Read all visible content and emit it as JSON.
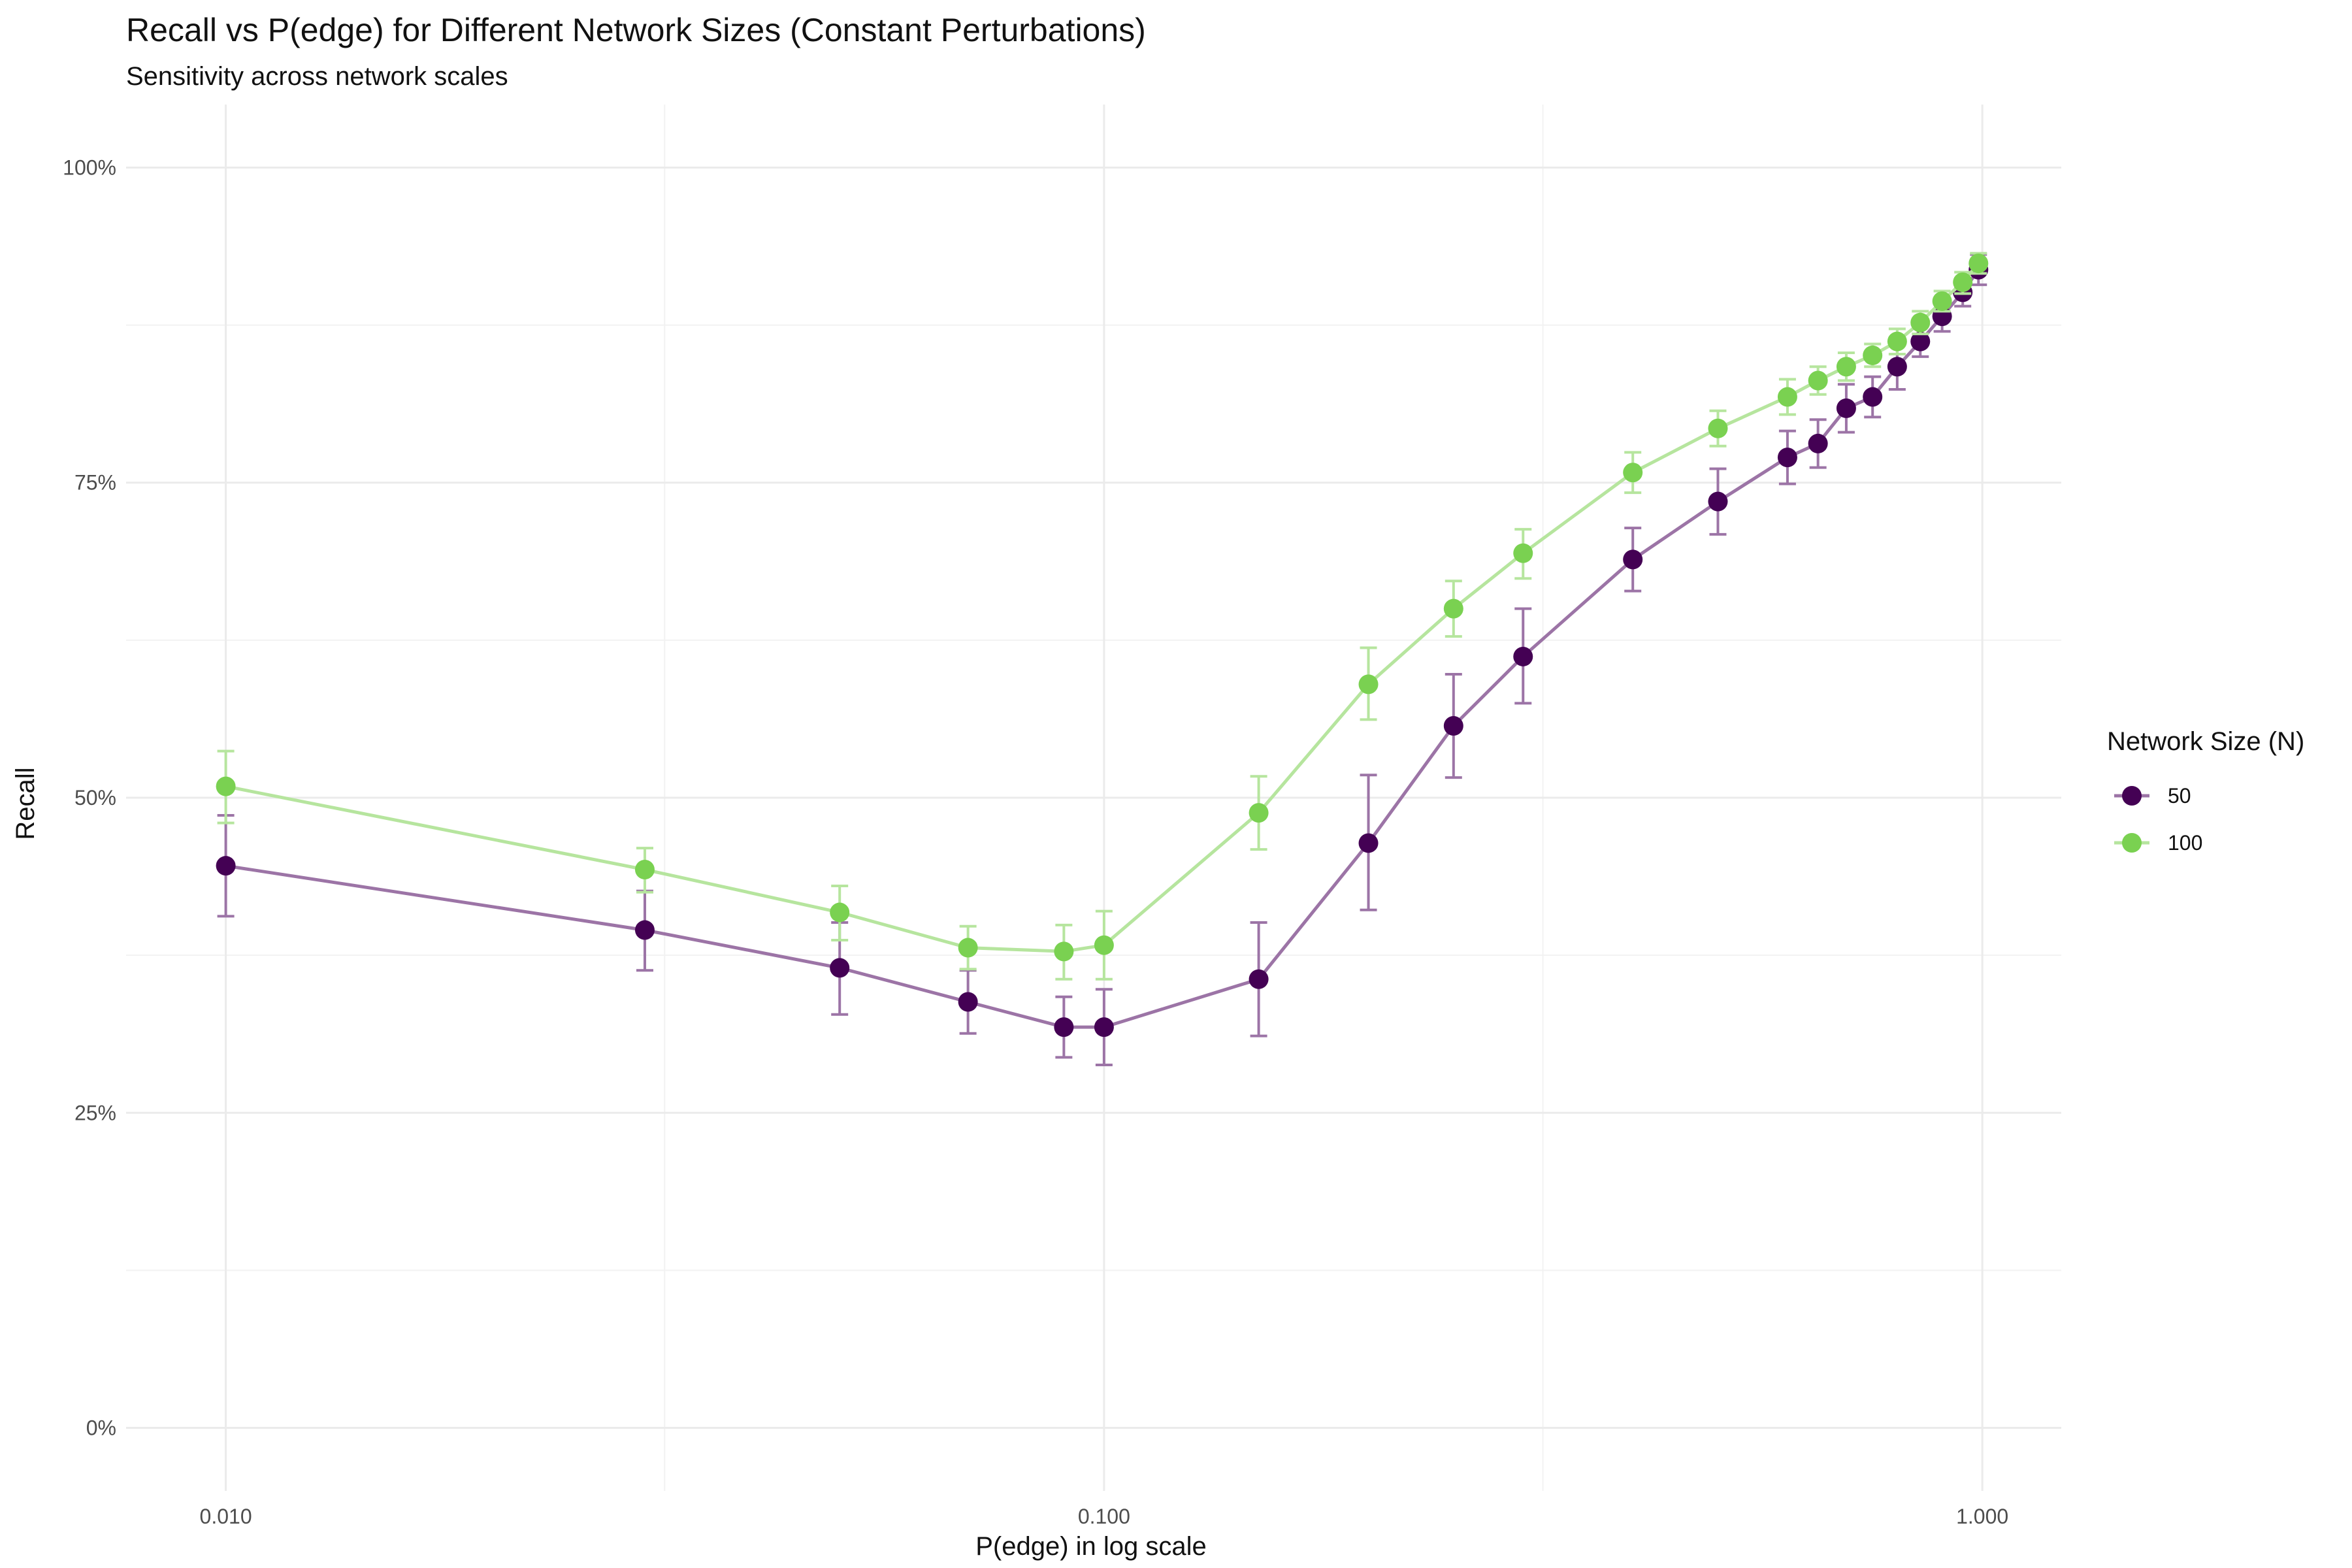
{
  "chart_data": {
    "type": "line",
    "title": "Recall vs P(edge) for Different Network Sizes (Constant Perturbations)",
    "subtitle": "Sensitivity across network scales",
    "xlabel": "P(edge) in log scale",
    "ylabel": "Recall",
    "x_scale": "log10",
    "xlim": [
      0.0077,
      1.23
    ],
    "ylim": [
      -0.05,
      1.05
    ],
    "x_ticks": [
      0.01,
      0.1,
      1.0
    ],
    "x_tick_labels": [
      "0.010",
      "0.100",
      "1.000"
    ],
    "x_minor_ticks": [
      0.0316,
      0.316
    ],
    "y_ticks": [
      0,
      0.25,
      0.5,
      0.75,
      1.0
    ],
    "y_tick_labels": [
      "0%",
      "25%",
      "50%",
      "75%",
      "100%"
    ],
    "y_minor_ticks": [
      0.125,
      0.375,
      0.625,
      0.875
    ],
    "grid": true,
    "legend": {
      "title": "Network Size (N)",
      "position": "right"
    },
    "series": [
      {
        "name": "50",
        "color": "#440154",
        "line_color": "#9c74a6",
        "x": [
          0.01,
          0.03,
          0.05,
          0.07,
          0.09,
          0.1,
          0.15,
          0.2,
          0.25,
          0.3,
          0.4,
          0.5,
          0.6,
          0.65,
          0.7,
          0.75,
          0.8,
          0.85,
          0.9,
          0.95,
          0.99
        ],
        "y": [
          0.446,
          0.395,
          0.365,
          0.338,
          0.318,
          0.318,
          0.356,
          0.464,
          0.557,
          0.612,
          0.689,
          0.735,
          0.77,
          0.781,
          0.809,
          0.818,
          0.842,
          0.862,
          0.882,
          0.901,
          0.919
        ],
        "ymin": [
          0.406,
          0.363,
          0.328,
          0.313,
          0.294,
          0.288,
          0.311,
          0.411,
          0.516,
          0.575,
          0.664,
          0.709,
          0.749,
          0.762,
          0.79,
          0.802,
          0.824,
          0.85,
          0.87,
          0.89,
          0.907
        ],
        "ymax": [
          0.486,
          0.426,
          0.401,
          0.363,
          0.342,
          0.348,
          0.401,
          0.518,
          0.598,
          0.65,
          0.714,
          0.761,
          0.791,
          0.8,
          0.828,
          0.834,
          0.86,
          0.875,
          0.894,
          0.912,
          0.931
        ]
      },
      {
        "name": "100",
        "color": "#7ad151",
        "line_color": "#b6e59e",
        "x": [
          0.01,
          0.03,
          0.05,
          0.07,
          0.09,
          0.1,
          0.15,
          0.2,
          0.25,
          0.3,
          0.4,
          0.5,
          0.6,
          0.65,
          0.7,
          0.75,
          0.8,
          0.85,
          0.9,
          0.95,
          0.99
        ],
        "y": [
          0.509,
          0.443,
          0.409,
          0.381,
          0.378,
          0.383,
          0.488,
          0.59,
          0.65,
          0.694,
          0.758,
          0.793,
          0.818,
          0.831,
          0.842,
          0.851,
          0.862,
          0.877,
          0.894,
          0.909,
          0.924
        ],
        "ymin": [
          0.48,
          0.425,
          0.387,
          0.364,
          0.356,
          0.356,
          0.459,
          0.562,
          0.628,
          0.674,
          0.742,
          0.779,
          0.804,
          0.82,
          0.831,
          0.842,
          0.852,
          0.868,
          0.886,
          0.9,
          0.916
        ],
        "ymax": [
          0.537,
          0.46,
          0.43,
          0.398,
          0.399,
          0.41,
          0.517,
          0.619,
          0.672,
          0.713,
          0.774,
          0.807,
          0.832,
          0.842,
          0.853,
          0.86,
          0.872,
          0.886,
          0.902,
          0.917,
          0.932
        ]
      }
    ]
  }
}
